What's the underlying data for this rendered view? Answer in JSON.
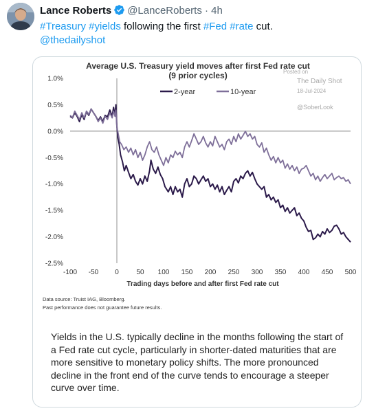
{
  "tweet": {
    "author_name": "Lance Roberts",
    "handle": "@LanceRoberts",
    "time": "· 4h",
    "text": {
      "tag1": "#Treasury",
      "tag2": "#yields",
      "mid": " following the first ",
      "tag3": "#Fed",
      "tag4": "#rate",
      "end": " cut.",
      "mention": "@thedailyshot"
    },
    "verified_color": "#1d9bf0",
    "link_color": "#1d9bf0"
  },
  "card": {
    "notes": [
      "Data source: Truist IAG, Bloomberg.",
      "Past performance does not guarantee future results."
    ],
    "caption": "Yields in the U.S. typically decline in the months following the start of a Fed rate cut cycle, particularly in shorter-dated maturities that are more sensitive to monetary policy shifts. The more pronounced decline in the front end of the curve tends to encourage a steeper curve over time."
  },
  "chart_data": {
    "type": "line",
    "title": "Average U.S. Treasury yield moves after first Fed rate cut",
    "subtitle": "(9 prior cycles)",
    "xlabel": "Trading days before and after first Fed rate cut",
    "ylabel": "",
    "xlim": [
      -100,
      500
    ],
    "ylim": [
      -2.5,
      1.0
    ],
    "xticks": [
      "-100",
      "-50",
      "0",
      "50",
      "100",
      "150",
      "200",
      "250",
      "300",
      "350",
      "400",
      "450",
      "500"
    ],
    "yticks": [
      "1.0%",
      "0.5%",
      "0.0%",
      "-0.5%",
      "-1.0%",
      "-1.5%",
      "-2.0%",
      "-2.5%"
    ],
    "legend_position": "top-center",
    "watermark": [
      "Posted on",
      "The Daily Shot",
      "18-Jul-2024",
      "@SoberLook"
    ],
    "series": [
      {
        "name": "2-year",
        "color": "#2b1a4a",
        "points": [
          [
            -100,
            0.28
          ],
          [
            -95,
            0.25
          ],
          [
            -90,
            0.35
          ],
          [
            -85,
            0.28
          ],
          [
            -80,
            0.18
          ],
          [
            -75,
            0.32
          ],
          [
            -70,
            0.22
          ],
          [
            -65,
            0.37
          ],
          [
            -60,
            0.3
          ],
          [
            -55,
            0.42
          ],
          [
            -50,
            0.35
          ],
          [
            -45,
            0.28
          ],
          [
            -40,
            0.2
          ],
          [
            -35,
            0.27
          ],
          [
            -30,
            0.18
          ],
          [
            -25,
            0.3
          ],
          [
            -20,
            0.27
          ],
          [
            -15,
            0.4
          ],
          [
            -10,
            0.28
          ],
          [
            -7,
            0.45
          ],
          [
            -4,
            0.3
          ],
          [
            -2,
            0.5
          ],
          [
            0,
            0.1
          ],
          [
            2,
            -0.12
          ],
          [
            5,
            -0.25
          ],
          [
            8,
            -0.45
          ],
          [
            12,
            -0.58
          ],
          [
            16,
            -0.75
          ],
          [
            20,
            -0.65
          ],
          [
            25,
            -0.78
          ],
          [
            30,
            -0.9
          ],
          [
            35,
            -0.82
          ],
          [
            40,
            -0.95
          ],
          [
            45,
            -1.02
          ],
          [
            50,
            -0.9
          ],
          [
            55,
            -1.0
          ],
          [
            60,
            -0.85
          ],
          [
            65,
            -0.95
          ],
          [
            70,
            -0.75
          ],
          [
            73,
            -0.55
          ],
          [
            78,
            -0.72
          ],
          [
            83,
            -0.8
          ],
          [
            88,
            -0.68
          ],
          [
            93,
            -0.82
          ],
          [
            98,
            -0.9
          ],
          [
            103,
            -1.05
          ],
          [
            110,
            -1.15
          ],
          [
            115,
            -1.05
          ],
          [
            120,
            -1.2
          ],
          [
            125,
            -1.05
          ],
          [
            130,
            -1.15
          ],
          [
            135,
            -1.1
          ],
          [
            140,
            -1.25
          ],
          [
            145,
            -1.0
          ],
          [
            150,
            -0.9
          ],
          [
            155,
            -1.05
          ],
          [
            160,
            -1.0
          ],
          [
            165,
            -0.85
          ],
          [
            170,
            -0.9
          ],
          [
            175,
            -1.0
          ],
          [
            180,
            -0.92
          ],
          [
            185,
            -0.85
          ],
          [
            190,
            -0.95
          ],
          [
            195,
            -0.9
          ],
          [
            200,
            -1.05
          ],
          [
            205,
            -1.0
          ],
          [
            210,
            -1.1
          ],
          [
            215,
            -1.02
          ],
          [
            220,
            -1.15
          ],
          [
            225,
            -1.05
          ],
          [
            230,
            -1.2
          ],
          [
            235,
            -1.12
          ],
          [
            240,
            -1.05
          ],
          [
            245,
            -1.15
          ],
          [
            250,
            -0.95
          ],
          [
            255,
            -0.9
          ],
          [
            260,
            -0.98
          ],
          [
            265,
            -0.85
          ],
          [
            270,
            -0.9
          ],
          [
            275,
            -0.8
          ],
          [
            280,
            -0.75
          ],
          [
            285,
            -0.85
          ],
          [
            290,
            -0.78
          ],
          [
            295,
            -0.9
          ],
          [
            300,
            -1.0
          ],
          [
            305,
            -1.05
          ],
          [
            310,
            -1.1
          ],
          [
            315,
            -1.05
          ],
          [
            320,
            -1.25
          ],
          [
            325,
            -1.2
          ],
          [
            330,
            -1.3
          ],
          [
            335,
            -1.25
          ],
          [
            340,
            -1.35
          ],
          [
            345,
            -1.3
          ],
          [
            350,
            -1.45
          ],
          [
            355,
            -1.4
          ],
          [
            360,
            -1.52
          ],
          [
            365,
            -1.45
          ],
          [
            370,
            -1.55
          ],
          [
            375,
            -1.5
          ],
          [
            380,
            -1.45
          ],
          [
            385,
            -1.6
          ],
          [
            390,
            -1.55
          ],
          [
            395,
            -1.65
          ],
          [
            400,
            -1.7
          ],
          [
            405,
            -1.82
          ],
          [
            410,
            -1.9
          ],
          [
            415,
            -1.88
          ],
          [
            420,
            -2.05
          ],
          [
            425,
            -2.02
          ],
          [
            430,
            -1.95
          ],
          [
            435,
            -2.0
          ],
          [
            440,
            -1.9
          ],
          [
            445,
            -1.95
          ],
          [
            450,
            -1.85
          ],
          [
            455,
            -1.92
          ],
          [
            460,
            -1.88
          ],
          [
            465,
            -1.8
          ],
          [
            470,
            -1.78
          ],
          [
            475,
            -1.85
          ],
          [
            480,
            -1.95
          ],
          [
            485,
            -1.92
          ],
          [
            490,
            -2.0
          ],
          [
            495,
            -2.05
          ],
          [
            500,
            -2.1
          ]
        ]
      },
      {
        "name": "10-year",
        "color": "#7e6f99",
        "points": [
          [
            -100,
            0.3
          ],
          [
            -95,
            0.26
          ],
          [
            -90,
            0.38
          ],
          [
            -85,
            0.3
          ],
          [
            -80,
            0.22
          ],
          [
            -75,
            0.35
          ],
          [
            -70,
            0.25
          ],
          [
            -65,
            0.38
          ],
          [
            -60,
            0.32
          ],
          [
            -55,
            0.42
          ],
          [
            -50,
            0.35
          ],
          [
            -45,
            0.28
          ],
          [
            -40,
            0.18
          ],
          [
            -35,
            0.25
          ],
          [
            -30,
            0.15
          ],
          [
            -25,
            0.28
          ],
          [
            -20,
            0.22
          ],
          [
            -15,
            0.35
          ],
          [
            -10,
            0.25
          ],
          [
            -7,
            0.38
          ],
          [
            -4,
            0.28
          ],
          [
            -2,
            0.4
          ],
          [
            0,
            0.08
          ],
          [
            3,
            -0.05
          ],
          [
            6,
            -0.2
          ],
          [
            10,
            -0.25
          ],
          [
            15,
            -0.35
          ],
          [
            20,
            -0.3
          ],
          [
            25,
            -0.4
          ],
          [
            30,
            -0.32
          ],
          [
            35,
            -0.45
          ],
          [
            40,
            -0.35
          ],
          [
            45,
            -0.5
          ],
          [
            50,
            -0.4
          ],
          [
            55,
            -0.55
          ],
          [
            60,
            -0.45
          ],
          [
            65,
            -0.3
          ],
          [
            70,
            -0.2
          ],
          [
            75,
            -0.35
          ],
          [
            80,
            -0.4
          ],
          [
            85,
            -0.3
          ],
          [
            90,
            -0.45
          ],
          [
            95,
            -0.55
          ],
          [
            100,
            -0.65
          ],
          [
            105,
            -0.5
          ],
          [
            110,
            -0.6
          ],
          [
            115,
            -0.45
          ],
          [
            120,
            -0.5
          ],
          [
            125,
            -0.38
          ],
          [
            130,
            -0.45
          ],
          [
            135,
            -0.4
          ],
          [
            140,
            -0.5
          ],
          [
            145,
            -0.3
          ],
          [
            150,
            -0.2
          ],
          [
            155,
            -0.3
          ],
          [
            160,
            -0.18
          ],
          [
            165,
            -0.05
          ],
          [
            170,
            -0.15
          ],
          [
            175,
            -0.25
          ],
          [
            180,
            -0.2
          ],
          [
            185,
            -0.1
          ],
          [
            190,
            -0.22
          ],
          [
            195,
            -0.3
          ],
          [
            200,
            -0.2
          ],
          [
            205,
            -0.28
          ],
          [
            210,
            -0.1
          ],
          [
            215,
            -0.2
          ],
          [
            220,
            -0.3
          ],
          [
            225,
            -0.25
          ],
          [
            230,
            -0.35
          ],
          [
            235,
            -0.2
          ],
          [
            240,
            -0.15
          ],
          [
            245,
            -0.25
          ],
          [
            250,
            -0.1
          ],
          [
            255,
            -0.2
          ],
          [
            260,
            -0.05
          ],
          [
            265,
            -0.15
          ],
          [
            270,
            -0.08
          ],
          [
            275,
            0.0
          ],
          [
            280,
            -0.1
          ],
          [
            285,
            -0.05
          ],
          [
            290,
            -0.15
          ],
          [
            295,
            -0.1
          ],
          [
            300,
            -0.25
          ],
          [
            305,
            -0.3
          ],
          [
            310,
            -0.22
          ],
          [
            315,
            -0.4
          ],
          [
            320,
            -0.32
          ],
          [
            325,
            -0.45
          ],
          [
            330,
            -0.55
          ],
          [
            335,
            -0.48
          ],
          [
            340,
            -0.6
          ],
          [
            345,
            -0.5
          ],
          [
            350,
            -0.6
          ],
          [
            355,
            -0.55
          ],
          [
            360,
            -0.7
          ],
          [
            365,
            -0.62
          ],
          [
            370,
            -0.72
          ],
          [
            375,
            -0.65
          ],
          [
            380,
            -0.75
          ],
          [
            385,
            -0.68
          ],
          [
            390,
            -0.8
          ],
          [
            395,
            -0.72
          ],
          [
            400,
            -0.7
          ],
          [
            405,
            -0.65
          ],
          [
            410,
            -0.75
          ],
          [
            415,
            -0.85
          ],
          [
            420,
            -0.8
          ],
          [
            425,
            -0.92
          ],
          [
            430,
            -0.85
          ],
          [
            435,
            -0.95
          ],
          [
            440,
            -0.88
          ],
          [
            445,
            -0.82
          ],
          [
            450,
            -0.9
          ],
          [
            455,
            -0.85
          ],
          [
            460,
            -0.8
          ],
          [
            465,
            -0.92
          ],
          [
            470,
            -0.88
          ],
          [
            475,
            -0.85
          ],
          [
            480,
            -0.9
          ],
          [
            485,
            -0.88
          ],
          [
            490,
            -0.95
          ],
          [
            495,
            -0.92
          ],
          [
            500,
            -1.0
          ]
        ]
      }
    ]
  }
}
